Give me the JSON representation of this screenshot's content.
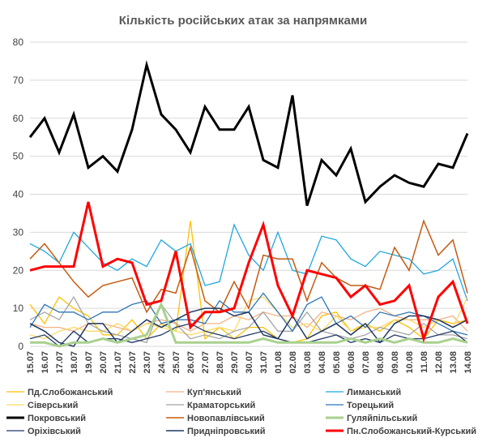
{
  "chart_data": {
    "type": "line",
    "title": "Кількість російських атак за напрямками",
    "xlabel": "",
    "ylabel": "",
    "ylim": [
      0,
      80
    ],
    "yticks": [
      0,
      10,
      20,
      30,
      40,
      50,
      60,
      70,
      80
    ],
    "grid": "horizontal",
    "legend_position": "bottom",
    "categories": [
      "15.07",
      "16.07",
      "17.07",
      "18.07",
      "19.07",
      "20.07",
      "21.07",
      "22.07",
      "23.07",
      "24.07",
      "25.07",
      "26.07",
      "27.07",
      "28.07",
      "29.07",
      "30.07",
      "31.07",
      "01.08",
      "02.08",
      "03.08",
      "04.08",
      "05.08",
      "06.08",
      "07.08",
      "08.08",
      "09.08",
      "10.08",
      "11.08",
      "12.08",
      "13.08",
      "14.08"
    ],
    "series": [
      {
        "name": "Пд.Слобожанський",
        "color": "#ffc000",
        "width": 1.3,
        "values": [
          11,
          6,
          13,
          10,
          8,
          3,
          3,
          7,
          2,
          6,
          4,
          33,
          2,
          5,
          2,
          5,
          5,
          2,
          1,
          2,
          8,
          9,
          4,
          6,
          4,
          7,
          5,
          2,
          7,
          6,
          7
        ]
      },
      {
        "name": "Куп'янський",
        "color": "#f4b183",
        "width": 1.3,
        "values": [
          6,
          5,
          5,
          4,
          6,
          6,
          5,
          4,
          6,
          7,
          6,
          4,
          6,
          6,
          8,
          7,
          9,
          8,
          8,
          5,
          9,
          8,
          7,
          9,
          10,
          8,
          7,
          7,
          7,
          8,
          4
        ]
      },
      {
        "name": "Лиманський",
        "color": "#1fa7e0",
        "width": 1.3,
        "values": [
          27,
          25,
          22,
          30,
          26,
          22,
          20,
          23,
          21,
          28,
          25,
          27,
          16,
          17,
          32,
          24,
          20,
          30,
          20,
          19,
          29,
          28,
          23,
          21,
          25,
          24,
          23,
          19,
          20,
          23,
          12
        ]
      },
      {
        "name": "Сіверський",
        "color": "#ffd966",
        "width": 1.3,
        "values": [
          3,
          2,
          4,
          5,
          4,
          4,
          6,
          4,
          6,
          5,
          4,
          3,
          4,
          5,
          4,
          12,
          13,
          9,
          5,
          6,
          4,
          8,
          4,
          5,
          5,
          7,
          7,
          5,
          7,
          5,
          13
        ]
      },
      {
        "name": "Краматорський",
        "color": "#a5a5a5",
        "width": 1.3,
        "values": [
          7,
          9,
          7,
          13,
          6,
          4,
          3,
          2,
          1,
          11,
          6,
          2,
          3,
          2,
          4,
          5,
          9,
          4,
          4,
          9,
          4,
          3,
          2,
          3,
          5,
          4,
          3,
          6,
          3,
          3,
          2
        ]
      },
      {
        "name": "Торецький",
        "color": "#2e75b6",
        "width": 1.3,
        "values": [
          5,
          11,
          9,
          9,
          7,
          9,
          9,
          11,
          12,
          6,
          7,
          7,
          6,
          12,
          9,
          9,
          14,
          9,
          4,
          11,
          13,
          6,
          8,
          5,
          9,
          8,
          9,
          8,
          6,
          4,
          3
        ]
      },
      {
        "name": "Покровський",
        "color": "#000000",
        "width": 3,
        "values": [
          55,
          60,
          51,
          61,
          47,
          50,
          46,
          57,
          74,
          61,
          57,
          51,
          63,
          57,
          57,
          63,
          49,
          47,
          66,
          37,
          49,
          45,
          52,
          38,
          42,
          45,
          43,
          42,
          48,
          47,
          56
        ]
      },
      {
        "name": "Новопавлівський",
        "color": "#c55a11",
        "width": 1.5,
        "values": [
          23,
          27,
          22,
          17,
          13,
          16,
          17,
          18,
          9,
          15,
          14,
          26,
          12,
          9,
          17,
          10,
          24,
          23,
          23,
          12,
          22,
          18,
          16,
          16,
          15,
          26,
          20,
          33,
          24,
          28,
          14
        ]
      },
      {
        "name": "Гуляйпільський",
        "color": "#a9d18e",
        "width": 3,
        "values": [
          1,
          1,
          0,
          1,
          1,
          2,
          1,
          2,
          3,
          11,
          1,
          1,
          1,
          1,
          1,
          1,
          2,
          1,
          1,
          1,
          1,
          1,
          2,
          1,
          2,
          1,
          2,
          1,
          1,
          2,
          1
        ]
      },
      {
        "name": "Оріхівський",
        "color": "#203864",
        "width": 1.3,
        "values": [
          2,
          3,
          0,
          4,
          1,
          2,
          2,
          1,
          2,
          3,
          5,
          6,
          4,
          3,
          2,
          3,
          4,
          2,
          1,
          1,
          2,
          3,
          1,
          2,
          1,
          3,
          2,
          2,
          3,
          4,
          1
        ]
      },
      {
        "name": "Придніпровський",
        "color": "#1f3864",
        "width": 1.5,
        "values": [
          6,
          4,
          1,
          0,
          6,
          6,
          1,
          4,
          7,
          5,
          7,
          9,
          10,
          10,
          8,
          9,
          3,
          2,
          8,
          2,
          4,
          6,
          3,
          6,
          1,
          6,
          8,
          8,
          7,
          5,
          7
        ]
      },
      {
        "name": "Пн.Слобожанський-Курський",
        "color": "#ff0000",
        "width": 3,
        "values": [
          20,
          21,
          21,
          21,
          38,
          21,
          23,
          22,
          11,
          12,
          25,
          5,
          9,
          9,
          10,
          22,
          32,
          16,
          8,
          20,
          19,
          18,
          13,
          16,
          11,
          12,
          16,
          2,
          13,
          17,
          6
        ]
      }
    ]
  }
}
